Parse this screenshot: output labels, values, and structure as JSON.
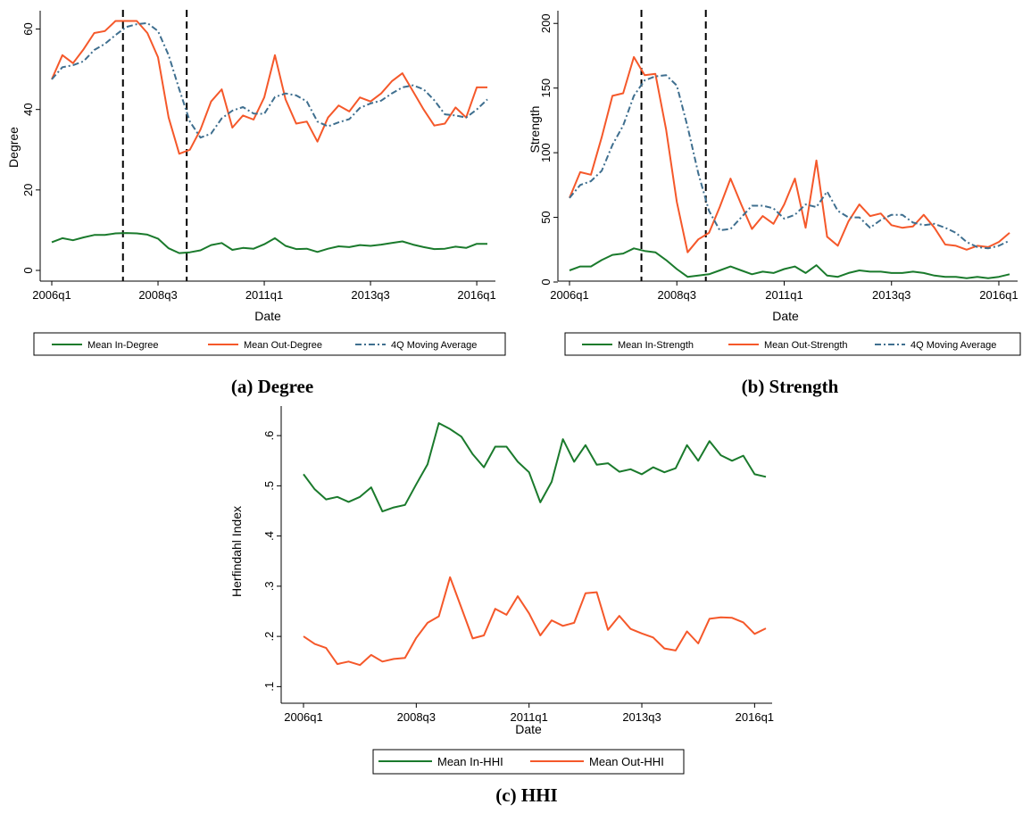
{
  "captions": {
    "a": "(a) Degree",
    "b": "(b) Strength",
    "c": "(c) HHI"
  },
  "colors": {
    "in": "#1a7a2c",
    "out": "#f5582a",
    "ma": "#3f6f8f",
    "vline": "#000000"
  },
  "chart_data": [
    {
      "type": "line",
      "panel": "a",
      "xlabel": "Date",
      "ylabel": "Degree",
      "xlim": [
        0,
        41
      ],
      "ylim": [
        0,
        63
      ],
      "xticks": [
        {
          "x": 0,
          "label": "2006q1"
        },
        {
          "x": 10,
          "label": "2008q3"
        },
        {
          "x": 20,
          "label": "2011q1"
        },
        {
          "x": 30,
          "label": "2013q3"
        },
        {
          "x": 40,
          "label": "2016q1"
        }
      ],
      "yticks": [
        {
          "y": 0,
          "label": "0"
        },
        {
          "y": 20,
          "label": "20"
        },
        {
          "y": 40,
          "label": "40"
        },
        {
          "y": 60,
          "label": "60"
        }
      ],
      "vlines": [
        6.7,
        12.7
      ],
      "series": [
        {
          "name": "Mean In-Degree",
          "role": "in",
          "values": [
            7.0,
            8.0,
            7.5,
            8.2,
            8.8,
            8.8,
            9.2,
            9.3,
            9.2,
            8.9,
            7.9,
            5.5,
            4.3,
            4.5,
            5.0,
            6.3,
            6.8,
            5.1,
            5.6,
            5.4,
            6.5,
            8.0,
            6.1,
            5.3,
            5.4,
            4.6,
            5.4,
            6.0,
            5.8,
            6.3,
            6.1,
            6.4,
            6.8,
            7.2,
            6.4,
            5.8,
            5.3,
            5.4,
            5.9,
            5.6,
            6.6,
            6.6
          ]
        },
        {
          "name": "Mean Out-Degree",
          "role": "out",
          "values": [
            47.5,
            53.5,
            51.5,
            55.0,
            59.0,
            59.5,
            62.0,
            62.0,
            62.0,
            59.0,
            53.0,
            38.0,
            29.0,
            30.0,
            35.0,
            42.0,
            45.0,
            35.5,
            38.5,
            37.5,
            43.0,
            53.5,
            42.5,
            36.5,
            37.0,
            32.0,
            38.0,
            41.0,
            39.5,
            43.0,
            42.0,
            44.0,
            47.0,
            49.0,
            44.5,
            40.0,
            36.0,
            36.5,
            40.5,
            38.0,
            45.5,
            45.5
          ]
        },
        {
          "name": "4Q Moving Average",
          "role": "ma",
          "values": [
            47.5,
            50.5,
            51.0,
            52.0,
            54.8,
            56.3,
            58.5,
            60.5,
            61.2,
            61.5,
            59.5,
            53.5,
            45.0,
            37.0,
            33.0,
            34.0,
            37.8,
            39.7,
            40.6,
            39.0,
            38.9,
            43.1,
            44.0,
            43.5,
            42.0,
            37.0,
            35.8,
            36.8,
            37.6,
            40.4,
            41.5,
            42.2,
            44.0,
            45.5,
            46.0,
            45.0,
            42.3,
            38.8,
            38.5,
            38.0,
            40.0,
            42.5
          ]
        }
      ]
    },
    {
      "type": "line",
      "panel": "b",
      "xlabel": "Date",
      "ylabel": "Strength",
      "xlim": [
        0,
        41
      ],
      "ylim": [
        0,
        205
      ],
      "xticks": [
        {
          "x": 0,
          "label": "2006q1"
        },
        {
          "x": 10,
          "label": "2008q3"
        },
        {
          "x": 20,
          "label": "2011q1"
        },
        {
          "x": 30,
          "label": "2013q3"
        },
        {
          "x": 40,
          "label": "2016q1"
        }
      ],
      "yticks": [
        {
          "y": 0,
          "label": "0"
        },
        {
          "y": 50,
          "label": "50"
        },
        {
          "y": 100,
          "label": "100"
        },
        {
          "y": 150,
          "label": "150"
        },
        {
          "y": 200,
          "label": "200"
        }
      ],
      "vlines": [
        6.7,
        12.7
      ],
      "series": [
        {
          "name": "Mean In-Strength",
          "role": "in",
          "values": [
            9,
            12,
            12,
            17,
            21,
            22,
            26,
            24,
            23,
            17,
            10,
            4,
            5,
            6,
            9,
            12,
            9,
            6,
            8,
            7,
            10,
            12,
            7,
            13,
            5,
            4,
            7,
            9,
            8,
            8,
            7,
            7,
            8,
            7,
            5,
            4,
            4,
            3,
            4,
            3,
            4,
            6
          ]
        },
        {
          "name": "Mean Out-Strength",
          "role": "out",
          "values": [
            65,
            85,
            83,
            112,
            144,
            146,
            174,
            160,
            161,
            118,
            62,
            23,
            33,
            38,
            58,
            80,
            60,
            41,
            51,
            45,
            60,
            80,
            42,
            94,
            35,
            28,
            47,
            60,
            51,
            53,
            44,
            42,
            43,
            52,
            42,
            29,
            28,
            25,
            28,
            27,
            31,
            38
          ]
        },
        {
          "name": "4Q Moving Average",
          "role": "ma",
          "values": [
            65,
            75,
            78,
            86,
            106,
            121,
            144,
            156,
            159,
            160,
            152,
            120,
            84,
            55,
            40,
            41,
            50,
            59,
            59,
            57,
            49,
            52,
            60,
            58,
            70,
            55,
            50,
            50,
            42,
            48,
            52,
            52,
            46,
            44,
            45,
            42,
            38,
            31,
            27,
            26,
            28,
            32
          ]
        }
      ]
    },
    {
      "type": "line",
      "panel": "c",
      "xlabel": "Date",
      "ylabel": "Herfindahl Index",
      "xlim": [
        0,
        41
      ],
      "ylim": [
        0.09,
        0.65
      ],
      "xticks": [
        {
          "x": 0,
          "label": "2006q1"
        },
        {
          "x": 10,
          "label": "2008q3"
        },
        {
          "x": 20,
          "label": "2011q1"
        },
        {
          "x": 30,
          "label": "2013q3"
        },
        {
          "x": 40,
          "label": "2016q1"
        }
      ],
      "yticks": [
        {
          "y": 0.1,
          "label": ".1"
        },
        {
          "y": 0.2,
          "label": ".2"
        },
        {
          "y": 0.3,
          "label": ".3"
        },
        {
          "y": 0.4,
          "label": ".4"
        },
        {
          "y": 0.5,
          "label": ".5"
        },
        {
          "y": 0.6,
          "label": ".6"
        }
      ],
      "vlines": [],
      "series": [
        {
          "name": "Mean In-HHI",
          "role": "in",
          "values": [
            0.523,
            0.493,
            0.473,
            0.478,
            0.468,
            0.478,
            0.497,
            0.449,
            0.457,
            0.462,
            0.503,
            0.543,
            0.625,
            0.613,
            0.598,
            0.563,
            0.537,
            0.578,
            0.578,
            0.548,
            0.527,
            0.467,
            0.508,
            0.593,
            0.548,
            0.581,
            0.542,
            0.545,
            0.528,
            0.533,
            0.523,
            0.537,
            0.527,
            0.535,
            0.581,
            0.55,
            0.589,
            0.561,
            0.55,
            0.56,
            0.523,
            0.518
          ]
        },
        {
          "name": "Mean Out-HHI",
          "role": "out",
          "values": [
            0.2,
            0.185,
            0.177,
            0.145,
            0.15,
            0.143,
            0.163,
            0.15,
            0.155,
            0.157,
            0.197,
            0.227,
            0.24,
            0.318,
            0.257,
            0.196,
            0.202,
            0.255,
            0.243,
            0.28,
            0.246,
            0.202,
            0.232,
            0.221,
            0.227,
            0.286,
            0.288,
            0.213,
            0.241,
            0.215,
            0.206,
            0.198,
            0.176,
            0.172,
            0.21,
            0.186,
            0.235,
            0.238,
            0.237,
            0.228,
            0.205,
            0.216
          ]
        }
      ]
    }
  ]
}
